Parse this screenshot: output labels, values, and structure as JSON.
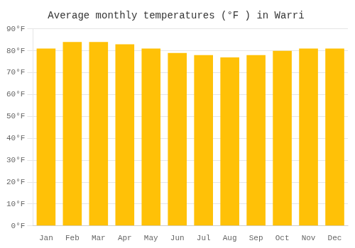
{
  "chart_data": {
    "type": "bar",
    "title": "Average monthly temperatures (°F ) in Warri",
    "categories": [
      "Jan",
      "Feb",
      "Mar",
      "Apr",
      "May",
      "Jun",
      "Jul",
      "Aug",
      "Sep",
      "Oct",
      "Nov",
      "Dec"
    ],
    "values": [
      81,
      84,
      84,
      83,
      81,
      79,
      78,
      77,
      78,
      80,
      81,
      81
    ],
    "color": "#FFC107",
    "ylim": [
      0,
      90
    ],
    "yticks": [
      {
        "value": 0,
        "label": "0°F"
      },
      {
        "value": 10,
        "label": "10°F"
      },
      {
        "value": 20,
        "label": "20°F"
      },
      {
        "value": 30,
        "label": "30°F"
      },
      {
        "value": 40,
        "label": "40°F"
      },
      {
        "value": 50,
        "label": "50°F"
      },
      {
        "value": 60,
        "label": "60°F"
      },
      {
        "value": 70,
        "label": "70°F"
      },
      {
        "value": 80,
        "label": "80°F"
      },
      {
        "value": 90,
        "label": "90°F"
      }
    ],
    "grid": true
  }
}
